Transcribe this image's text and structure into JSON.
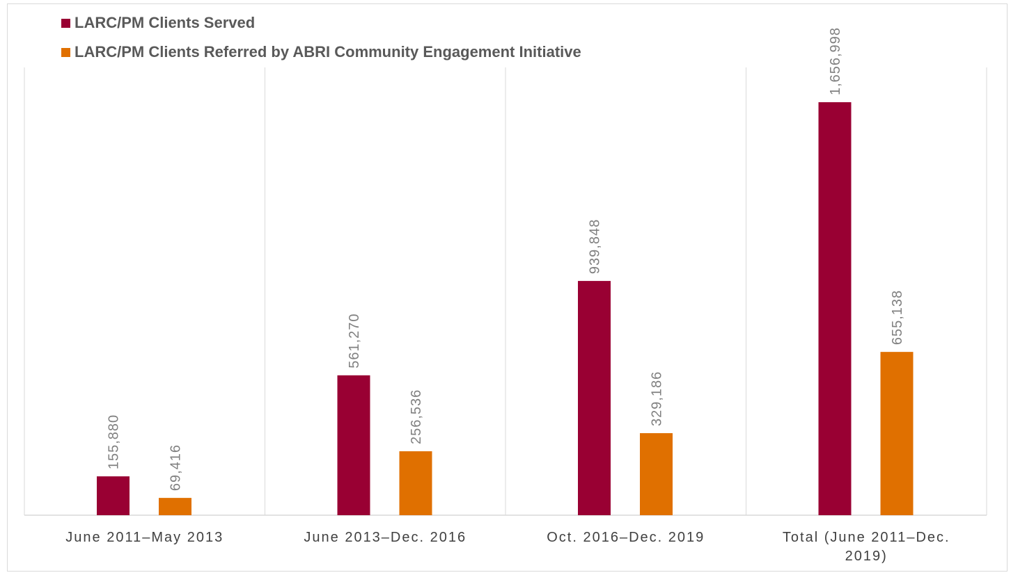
{
  "legend": {
    "items": [
      {
        "label": "LARC/PM Clients Served",
        "color": "#990033"
      },
      {
        "label": "LARC/PM Clients Referred by ABRI Community Engagement Initiative",
        "color": "#e07000"
      }
    ]
  },
  "chart_data": {
    "type": "bar",
    "categories": [
      [
        "June 2011–May 2013"
      ],
      [
        "June 2013–Dec. 2016"
      ],
      [
        "Oct. 2016–Dec. 2019"
      ],
      [
        "Total (June 2011–Dec.",
        "2019)"
      ]
    ],
    "series": [
      {
        "name": "LARC/PM Clients Served",
        "color": "#990033",
        "values": [
          155880,
          561270,
          939848,
          1656998
        ],
        "labels": [
          "155,880",
          "561,270",
          "939,848",
          "1,656,998"
        ]
      },
      {
        "name": "LARC/PM Clients Referred by ABRI Community Engagement Initiative",
        "color": "#e07000",
        "values": [
          69416,
          256536,
          329186,
          655138
        ],
        "labels": [
          "69,416",
          "256,536",
          "329,186",
          "655,138"
        ]
      }
    ],
    "ylim": [
      0,
      1800000
    ],
    "grid": false,
    "legend_position": "top-left",
    "data_labels": "rotated vertical above bars",
    "category_separators": true
  }
}
